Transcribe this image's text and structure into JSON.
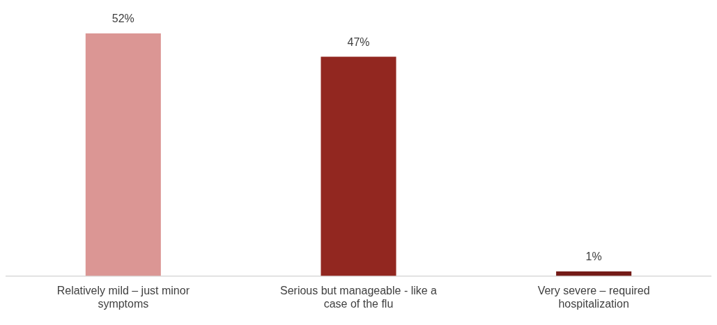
{
  "chart_data": {
    "type": "bar",
    "categories": [
      "Relatively mild – just minor symptoms",
      "Serious but manageable - like a case of the flu",
      "Very severe – required hospitalization"
    ],
    "values": [
      52,
      47,
      1
    ],
    "colors": [
      "#db9694",
      "#922720",
      "#741b17"
    ],
    "value_labels": [
      "52%",
      "47%",
      "1%"
    ],
    "grid": false,
    "legend": false
  }
}
